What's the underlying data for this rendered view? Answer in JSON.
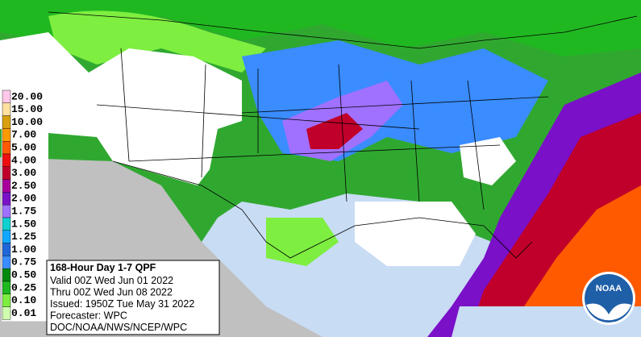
{
  "legend": {
    "entries": [
      {
        "label": "20.00",
        "color": "#ffc8e8"
      },
      {
        "label": "15.00",
        "color": "#ffe0a0"
      },
      {
        "label": "10.00",
        "color": "#d8a010"
      },
      {
        "label": "7.00",
        "color": "#ff9a00"
      },
      {
        "label": "5.00",
        "color": "#ff5a00"
      },
      {
        "label": "4.00",
        "color": "#ee1010"
      },
      {
        "label": "3.00",
        "color": "#c0002a"
      },
      {
        "label": "2.50",
        "color": "#a8009a"
      },
      {
        "label": "2.00",
        "color": "#7a10c8"
      },
      {
        "label": "1.75",
        "color": "#a070ff"
      },
      {
        "label": "1.50",
        "color": "#10d0d0"
      },
      {
        "label": "1.25",
        "color": "#10a8ff"
      },
      {
        "label": "1.00",
        "color": "#2066d8"
      },
      {
        "label": "0.75",
        "color": "#3a8cff"
      },
      {
        "label": "0.50",
        "color": "#008a10"
      },
      {
        "label": "0.25",
        "color": "#20b820"
      },
      {
        "label": "0.10",
        "color": "#7eee40"
      },
      {
        "label": "0.01",
        "color": "#d0ffb0"
      }
    ]
  },
  "info": {
    "title": "168-Hour Day 1-7 QPF",
    "lines": [
      "Valid 00Z Wed Jun 01 2022",
      "Thru 00Z Wed Jun 08 2022",
      "Issued: 1950Z Tue May 31 2022",
      "Forecaster: WPC",
      "DOC/NOAA/NWS/NCEP/WPC"
    ]
  },
  "logo": {
    "text": "NOAA"
  }
}
